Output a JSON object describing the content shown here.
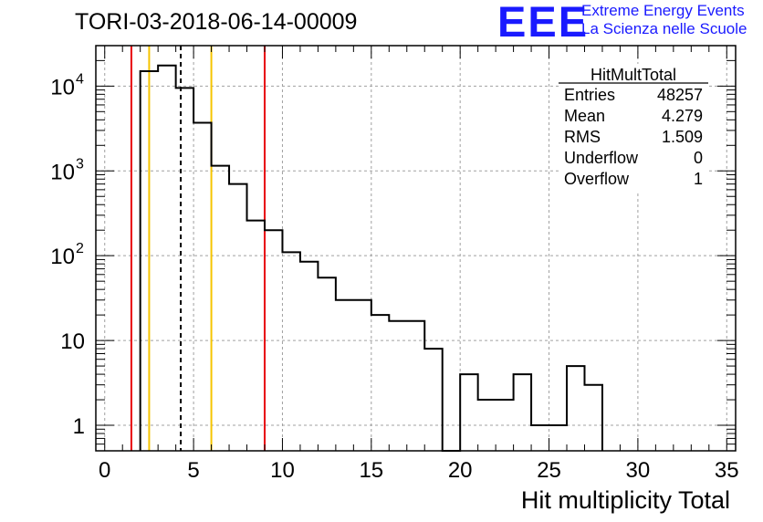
{
  "run_title": "TORI-03-2018-06-14-00009",
  "logo": {
    "mark": "EEE",
    "line1": "Extreme Energy Events",
    "line2": "La Scienza nelle Scuole"
  },
  "stats_box": {
    "title": "HitMultTotal",
    "rows": [
      {
        "label": "Entries",
        "value": "48257"
      },
      {
        "label": "Mean",
        "value": "4.279"
      },
      {
        "label": "RMS",
        "value": "1.509"
      },
      {
        "label": "Underflow",
        "value": "0"
      },
      {
        "label": "Overflow",
        "value": "1"
      }
    ]
  },
  "colors": {
    "histogram": "#000000",
    "red_line": "#e8000b",
    "yellow_line": "#f5c400",
    "grid": "#a0a0a0",
    "logo": "#1a1aff"
  },
  "chart_data": {
    "type": "histogram",
    "title": "TORI-03-2018-06-14-00009",
    "xlabel": "Hit multiplicity Total",
    "ylabel": "",
    "yscale": "log",
    "xlim": [
      -0.5,
      35.5
    ],
    "ylim": [
      0.5,
      30000
    ],
    "grid": true,
    "bin_width": 1,
    "bins_x": [
      2.5,
      3.5,
      4.5,
      5.5,
      6.5,
      7.5,
      8.5,
      9.5,
      10.5,
      11.5,
      12.5,
      13.5,
      14.5,
      15.5,
      16.5,
      17.5,
      18.5,
      19.5,
      20.5,
      21.5,
      22.5,
      23.5,
      24.5,
      25.5,
      26.5,
      27.5
    ],
    "bins_y": [
      15000,
      17500,
      9500,
      3700,
      1150,
      700,
      260,
      200,
      110,
      85,
      55,
      30,
      30,
      20,
      17,
      17,
      8,
      0,
      4,
      2,
      2,
      4,
      1,
      1,
      5,
      3
    ],
    "x_ticks": [
      0,
      5,
      10,
      15,
      20,
      25,
      30,
      35
    ],
    "x_tick_labels": [
      "0",
      "5",
      "10",
      "15",
      "20",
      "25",
      "30",
      "35"
    ],
    "y_ticks": [
      1,
      10,
      100,
      1000,
      10000
    ],
    "y_tick_labels": [
      {
        "base": "1",
        "exp": ""
      },
      {
        "base": "10",
        "exp": ""
      },
      {
        "base": "10",
        "exp": "2"
      },
      {
        "base": "10",
        "exp": "3"
      },
      {
        "base": "10",
        "exp": "4"
      }
    ],
    "vertical_lines": [
      {
        "x": 1.5,
        "color": "red",
        "style": "solid"
      },
      {
        "x": 2.5,
        "color": "yellow",
        "style": "solid"
      },
      {
        "x": 4.279,
        "color": "black",
        "style": "dashed"
      },
      {
        "x": 6.0,
        "color": "yellow",
        "style": "solid"
      },
      {
        "x": 9.0,
        "color": "red",
        "style": "solid"
      }
    ]
  }
}
